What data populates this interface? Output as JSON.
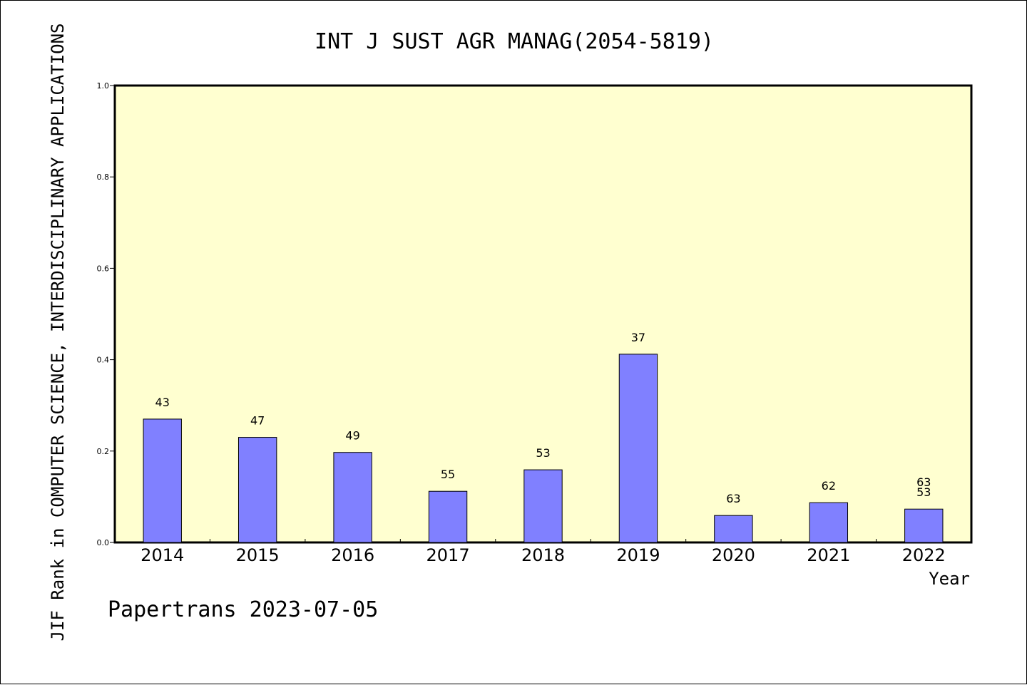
{
  "chart_data": {
    "type": "bar",
    "title": "INT J SUST AGR MANAG(2054-5819)",
    "xlabel": "Year",
    "ylabel": "JIF Rank in COMPUTER SCIENCE, INTERDISCIPLINARY APPLICATIONS",
    "footer": "Papertrans 2023-07-05",
    "ylim": [
      0,
      1.0
    ],
    "yticks": [
      "0.0",
      "0.2",
      "0.4",
      "0.6",
      "0.8",
      "1.0"
    ],
    "categories": [
      "2014",
      "2015",
      "2016",
      "2017",
      "2018",
      "2019",
      "2020",
      "2021",
      "2022"
    ],
    "values": [
      0.27,
      0.23,
      0.197,
      0.112,
      0.159,
      0.412,
      0.059,
      0.087,
      0.073
    ],
    "bar_labels": [
      [
        "43"
      ],
      [
        "47"
      ],
      [
        "49"
      ],
      [
        "55"
      ],
      [
        "53"
      ],
      [
        "37"
      ],
      [
        "63"
      ],
      [
        "62"
      ],
      [
        "63",
        "53"
      ]
    ],
    "grid": false,
    "colors": {
      "plot_background": "#FFFFD0",
      "bar_fill": "#8080FF",
      "bar_stroke": "#000000"
    }
  }
}
